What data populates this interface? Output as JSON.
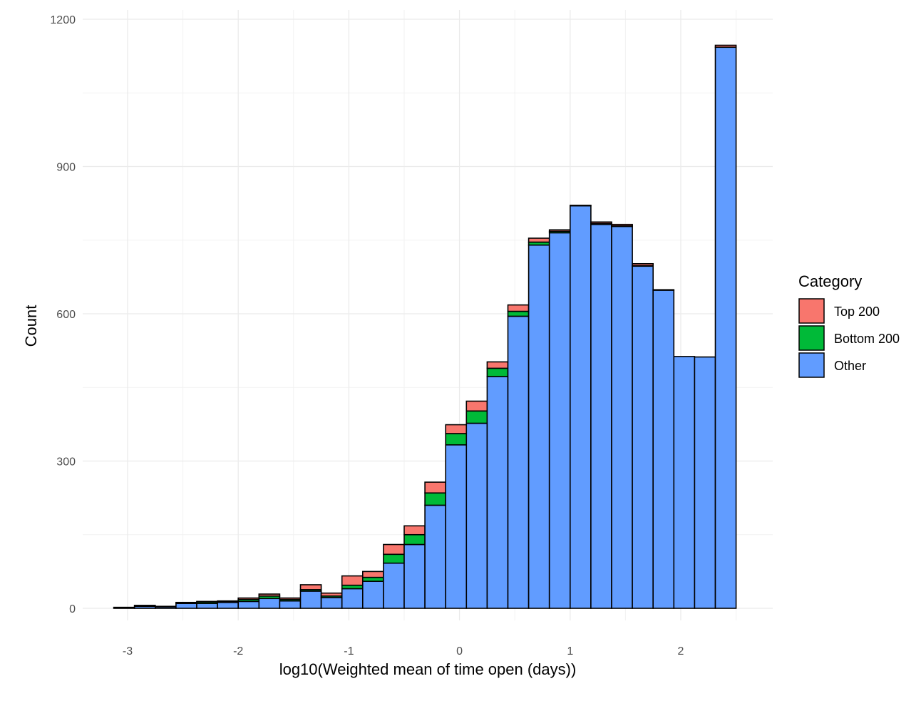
{
  "chart_data": {
    "type": "bar",
    "stacked": true,
    "title": "",
    "xlabel": "log10(Weighted mean of time open (days))",
    "ylabel": "Count",
    "xlim": [
      -3.25,
      2.85
    ],
    "ylim": [
      0,
      1200
    ],
    "x_ticks": [
      -3,
      -2,
      -1,
      0,
      1,
      2
    ],
    "x_tick_labels": [
      "-3",
      "-2",
      "-1",
      "0",
      "1",
      "2"
    ],
    "y_ticks": [
      0,
      300,
      600,
      900,
      1200
    ],
    "y_tick_labels": [
      "0",
      "300",
      "600",
      "900",
      "1200"
    ],
    "grid": true,
    "bin_width": 0.1875,
    "bin_left_edges": [
      -3.125,
      -2.9375,
      -2.75,
      -2.5625,
      -2.375,
      -2.1875,
      -2.0,
      -1.8125,
      -1.625,
      -1.4375,
      -1.25,
      -1.0625,
      -0.875,
      -0.6875,
      -0.5,
      -0.3125,
      -0.125,
      0.0625,
      0.25,
      0.4375,
      0.625,
      0.8125,
      1.0,
      1.1875,
      1.375,
      1.5625,
      1.75,
      1.9375,
      2.125,
      2.3125
    ],
    "legend": {
      "title": "Category",
      "position": "right",
      "items": [
        {
          "label": "Top 200",
          "color": "#F8766D"
        },
        {
          "label": "Bottom 200",
          "color": "#00BA38"
        },
        {
          "label": "Other",
          "color": "#619CFF"
        }
      ]
    },
    "series": [
      {
        "name": "Other",
        "color": "#619CFF",
        "values": [
          2,
          4,
          3,
          10,
          10,
          12,
          14,
          20,
          15,
          35,
          22,
          40,
          55,
          92,
          130,
          210,
          333,
          377,
          472,
          595,
          740,
          765,
          820,
          782,
          778,
          697,
          648,
          513,
          512,
          1143
        ]
      },
      {
        "name": "Bottom 200",
        "color": "#00BA38",
        "values": [
          0,
          1,
          0,
          1,
          3,
          2,
          4,
          5,
          3,
          3,
          3,
          7,
          8,
          18,
          20,
          25,
          23,
          25,
          17,
          10,
          6,
          3,
          0,
          2,
          1,
          1,
          0,
          0,
          0,
          0
        ]
      },
      {
        "name": "Top 200",
        "color": "#F8766D",
        "values": [
          0,
          1,
          1,
          1,
          1,
          1,
          3,
          4,
          3,
          10,
          6,
          19,
          12,
          20,
          18,
          22,
          18,
          20,
          13,
          13,
          8,
          3,
          1,
          3,
          3,
          4,
          1,
          0,
          0,
          4
        ]
      }
    ]
  }
}
